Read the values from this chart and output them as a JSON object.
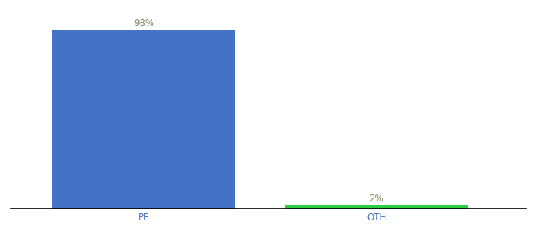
{
  "categories": [
    "PE",
    "OTH"
  ],
  "values": [
    98,
    2
  ],
  "bar_colors": [
    "#4472C4",
    "#2ECC40"
  ],
  "value_labels": [
    "98%",
    "2%"
  ],
  "label_color": "#888866",
  "ylim": [
    0,
    108
  ],
  "background_color": "#ffffff",
  "bar_width": 0.55,
  "label_fontsize": 8.5,
  "tick_fontsize": 8.5,
  "tick_color": "#4472C4",
  "x_positions": [
    0.3,
    1.0
  ]
}
